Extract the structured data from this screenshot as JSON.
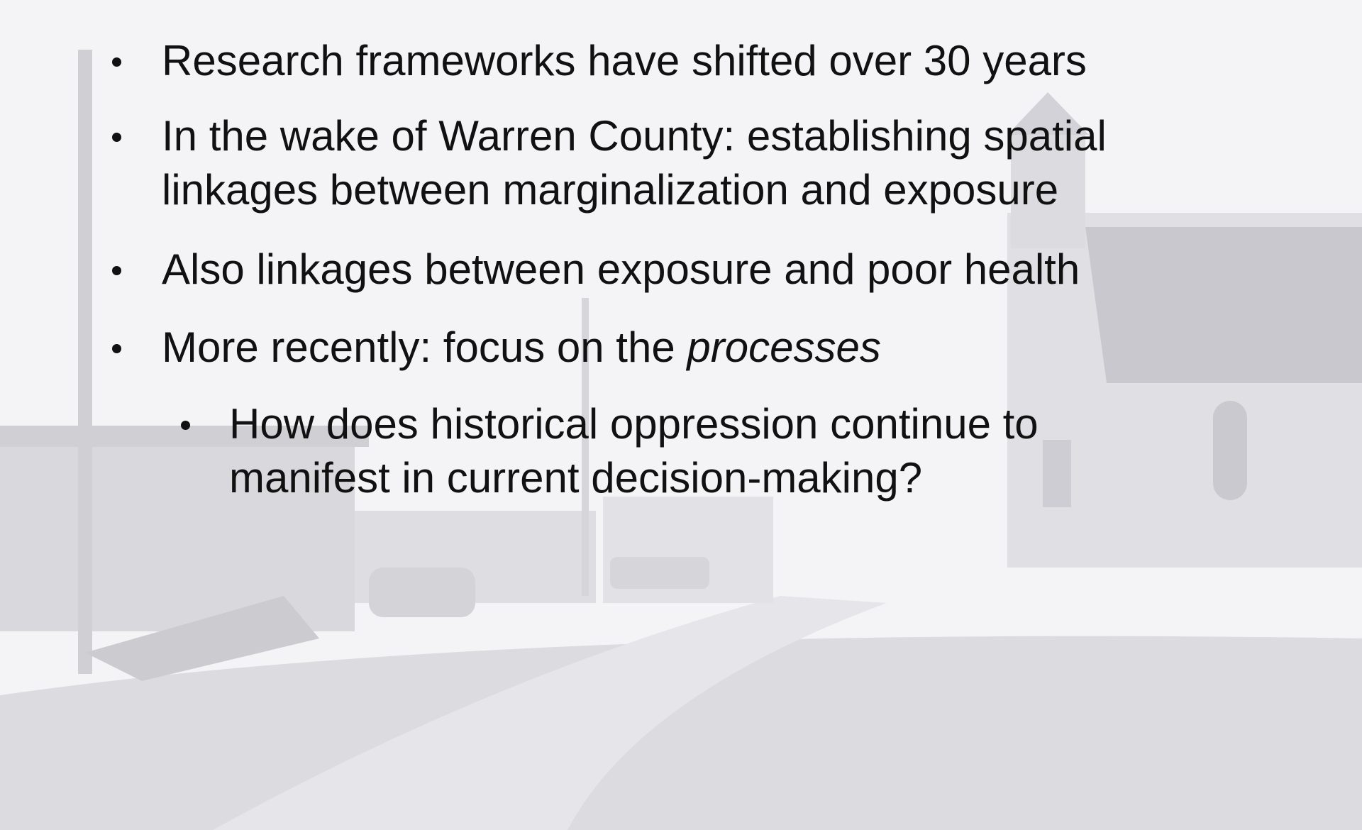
{
  "slide": {
    "bullets": [
      {
        "lines": [
          "Research frameworks have shifted over 30 years"
        ]
      },
      {
        "lines": [
          "In the wake of Warren County: establishing spatial",
          "linkages between marginalization and exposure"
        ]
      },
      {
        "lines": [
          "Also linkages between exposure and poor health"
        ]
      },
      {
        "segments": [
          "More recently: focus on the ",
          "processes"
        ]
      }
    ],
    "sub_bullets": [
      {
        "lines": [
          "How does historical oppression continue to",
          "manifest in current decision-making?"
        ]
      }
    ]
  }
}
